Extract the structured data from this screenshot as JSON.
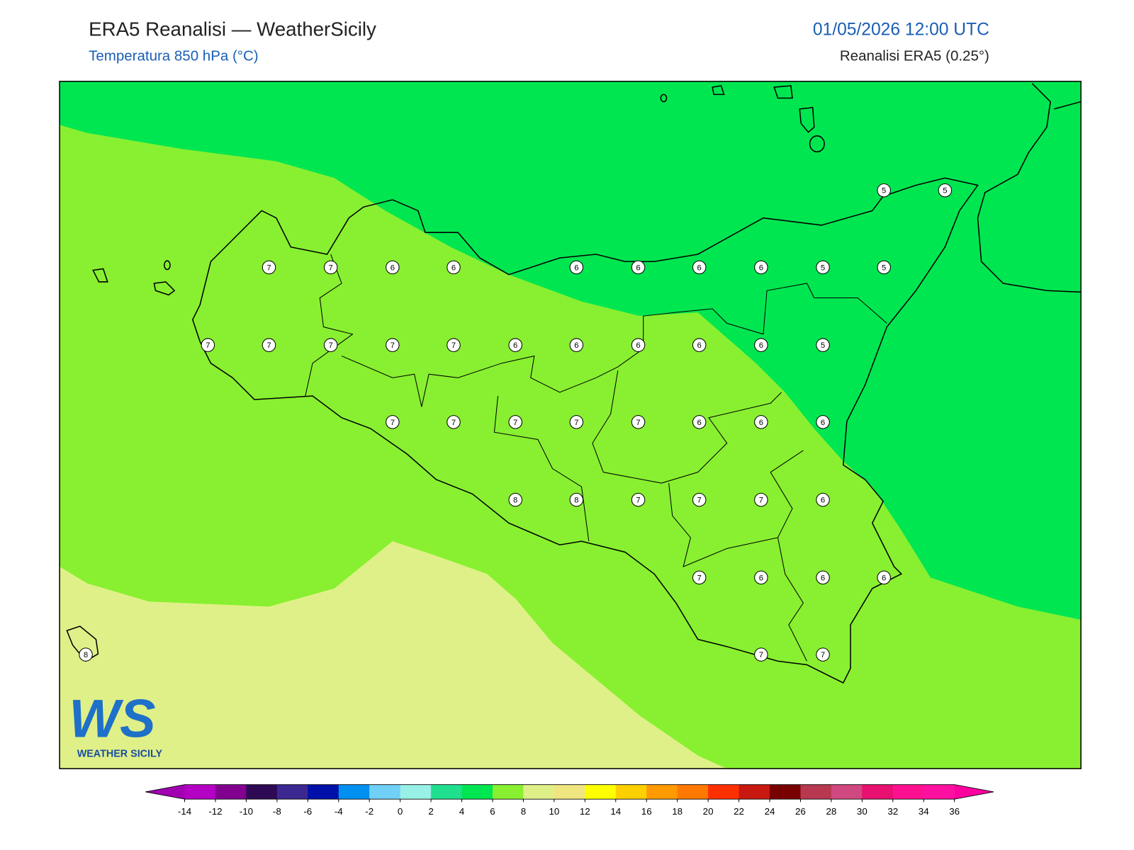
{
  "header": {
    "title": "ERA5 Reanalisi — WeatherSicily",
    "subtitle": "Temperatura 850 hPa (°C)",
    "datetime": "01/05/2026 12:00 UTC",
    "source": "Reanalisi ERA5 (0.25°)"
  },
  "stations": [
    5,
    5,
    7,
    7,
    6,
    6,
    6,
    6,
    6,
    6,
    5,
    5,
    7,
    7,
    7,
    7,
    7,
    6,
    6,
    6,
    6,
    6,
    5,
    7,
    7,
    7,
    7,
    7,
    6,
    6,
    6,
    8,
    8,
    7,
    7,
    7,
    6,
    7,
    6,
    6,
    6,
    7,
    7,
    8
  ],
  "logo": {
    "mark": "WS",
    "text": "WEATHER SICILY"
  },
  "colorbar": {
    "ticks": [
      -14,
      -12,
      -10,
      -8,
      -6,
      -4,
      -2,
      0,
      2,
      4,
      6,
      8,
      10,
      12,
      14,
      16,
      18,
      20,
      22,
      24,
      26,
      28,
      30,
      32,
      34,
      36
    ],
    "colors": [
      "#b400c4",
      "#820090",
      "#2e0a55",
      "#3b2890",
      "#0010a8",
      "#0090f0",
      "#70d0f8",
      "#98f0e6",
      "#20e090",
      "#00e650",
      "#88f030",
      "#e0f088",
      "#f0e680",
      "#ffff00",
      "#ffd000",
      "#ff9a00",
      "#ff7800",
      "#ff3000",
      "#c81810",
      "#780000",
      "#b83850",
      "#d04880",
      "#e81070",
      "#ff1090",
      "#ff10a0"
    ],
    "under_color": "#a000b0",
    "over_color": "#ff00a0"
  }
}
